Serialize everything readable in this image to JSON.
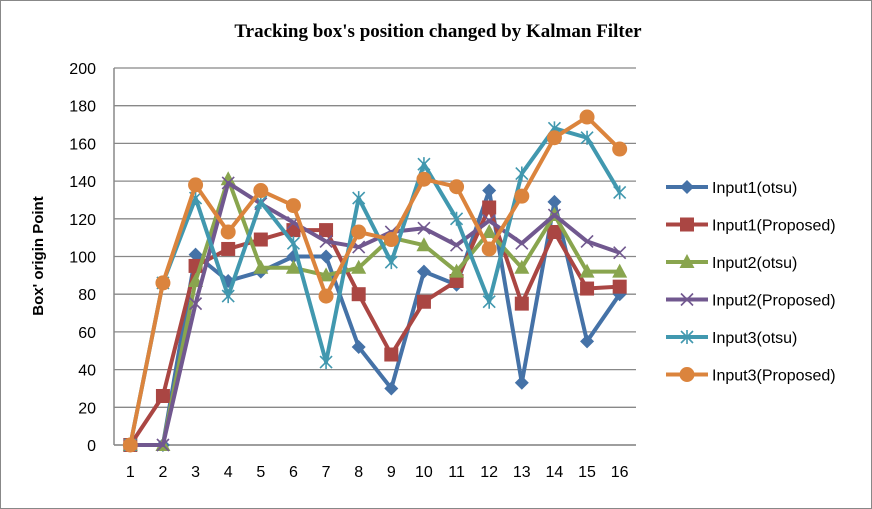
{
  "chart_data": {
    "type": "line",
    "title": "Tracking box's position changed by Kalman Filter",
    "xlabel": "",
    "ylabel": "Box' origin Point",
    "ylim": [
      0,
      200
    ],
    "yticks": [
      0,
      20,
      40,
      60,
      80,
      100,
      120,
      140,
      160,
      180,
      200
    ],
    "categories": [
      "1",
      "2",
      "3",
      "4",
      "5",
      "6",
      "7",
      "8",
      "9",
      "10",
      "11",
      "12",
      "13",
      "14",
      "15",
      "16"
    ],
    "grid": true,
    "legend_position": "right",
    "series": [
      {
        "name": "Input1(otsu)",
        "color": "#4572a7",
        "marker": "diamond",
        "values": [
          0,
          0,
          101,
          87,
          92,
          100,
          100,
          52,
          30,
          92,
          85,
          135,
          33,
          129,
          55,
          80
        ]
      },
      {
        "name": "Input1(Proposed)",
        "color": "#aa4643",
        "marker": "square",
        "values": [
          0,
          26,
          95,
          104,
          109,
          114,
          114,
          80,
          48,
          76,
          87,
          126,
          75,
          113,
          83,
          84
        ]
      },
      {
        "name": "Input2(otsu)",
        "color": "#89a54e",
        "marker": "triangle",
        "values": [
          0,
          0,
          87,
          141,
          94,
          94,
          90,
          94,
          110,
          106,
          92,
          113,
          94,
          122,
          92,
          92
        ]
      },
      {
        "name": "Input2(Proposed)",
        "color": "#71588f",
        "marker": "x",
        "values": [
          0,
          0,
          75,
          139,
          128,
          118,
          108,
          105,
          113,
          115,
          106,
          119,
          107,
          122,
          108,
          102
        ]
      },
      {
        "name": "Input3(otsu)",
        "color": "#4198af",
        "marker": "star",
        "values": [
          0,
          86,
          131,
          79,
          129,
          107,
          44,
          131,
          97,
          149,
          120,
          76,
          144,
          168,
          163,
          134
        ]
      },
      {
        "name": "Input3(Proposed)",
        "color": "#db843d",
        "marker": "circle",
        "values": [
          0,
          86,
          138,
          113,
          135,
          127,
          79,
          113,
          109,
          141,
          137,
          104,
          132,
          163,
          174,
          157
        ]
      }
    ]
  }
}
